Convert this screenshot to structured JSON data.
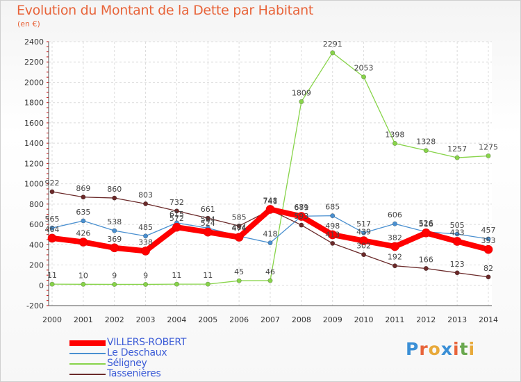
{
  "title": "Evolution du Montant de la Dette par Habitant",
  "unit_label": "(en €)",
  "logo": {
    "letters": [
      "P",
      "r",
      "o",
      "x",
      "i",
      "t",
      "i"
    ],
    "colors": [
      "#3a8fd6",
      "#e8643a",
      "#e8a93a",
      "#3a8fd6",
      "#e8643a",
      "#6aa84f",
      "#e8a93a"
    ]
  },
  "chart_data": {
    "type": "line",
    "title": "Evolution du Montant de la Dette par Habitant",
    "ylabel": "(en €)",
    "x": [
      "2000",
      "2001",
      "2002",
      "2003",
      "2004",
      "2005",
      "2006",
      "2007",
      "2008",
      "2009",
      "2010",
      "2011",
      "2012",
      "2013",
      "2014"
    ],
    "ylim": [
      -200,
      2400
    ],
    "yticks": [
      -200,
      0,
      200,
      400,
      600,
      800,
      1000,
      1200,
      1400,
      1600,
      1800,
      2000,
      2200,
      2400
    ],
    "grid": true,
    "legend_position": "bottom-left",
    "series": [
      {
        "name": "VILLERS-ROBERT",
        "color": "#ff0000",
        "values": [
          464,
          426,
          369,
          338,
          572,
          524,
          474,
          748,
          679,
          498,
          439,
          382,
          516,
          433,
          353
        ]
      },
      {
        "name": "Le Deschaux",
        "color": "#4a90d0",
        "values": [
          565,
          635,
          538,
          485,
          615,
          564,
          484,
          418,
          681,
          685,
          517,
          606,
          526,
          505,
          457
        ]
      },
      {
        "name": "Séligney",
        "color": "#88d44a",
        "values": [
          11,
          10,
          9,
          9,
          11,
          11,
          45,
          46,
          1809,
          2291,
          2053,
          1398,
          1328,
          1257,
          1275
        ]
      },
      {
        "name": "Tassenières",
        "color": "#6b2a2a",
        "values": [
          922,
          869,
          860,
          803,
          732,
          661,
          585,
          741,
          593,
          413,
          302,
          192,
          166,
          123,
          82
        ]
      }
    ]
  }
}
